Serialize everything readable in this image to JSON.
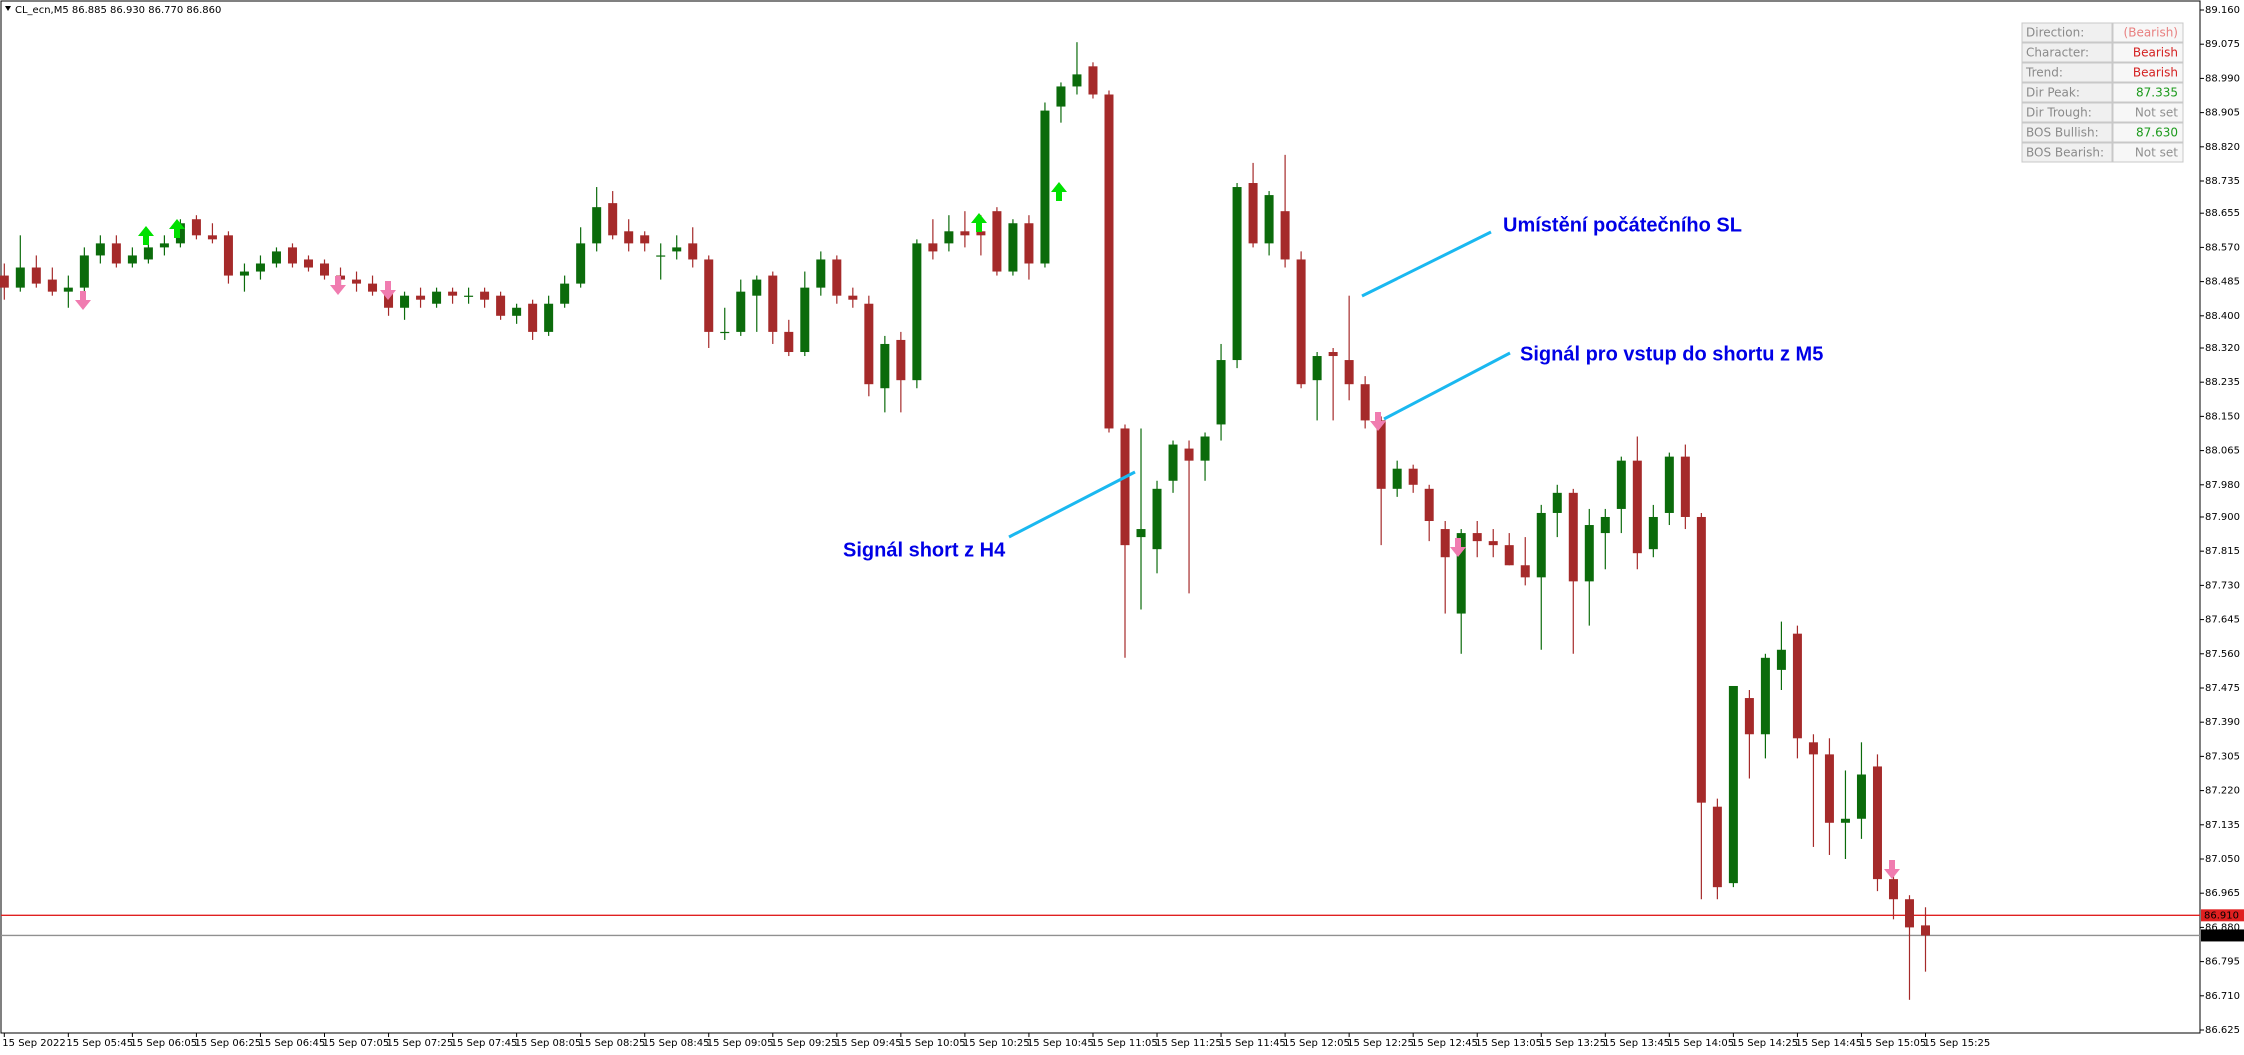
{
  "header": "CL_ecn,M5  86.885 86.930 86.770 86.860",
  "chart_data": {
    "type": "candlestick",
    "annotations": [
      "Umístění počátečního SL",
      "Signál pro vstup do shortu z M5",
      "Signál short z H4"
    ],
    "x": [
      "15 Sep 2022",
      null,
      null,
      null,
      "15 Sep 05:45",
      null,
      null,
      null,
      "15 Sep 06:05",
      null,
      null,
      null,
      "15 Sep 06:25",
      null,
      null,
      null,
      "15 Sep 06:45",
      null,
      null,
      null,
      "15 Sep 07:05",
      null,
      null,
      null,
      "15 Sep 07:25",
      null,
      null,
      null,
      "15 Sep 07:45",
      null,
      null,
      null,
      "15 Sep 08:05",
      null,
      null,
      null,
      "15 Sep 08:25",
      null,
      null,
      null,
      "15 Sep 08:45",
      null,
      null,
      null,
      "15 Sep 09:05",
      null,
      null,
      null,
      "15 Sep 09:25",
      null,
      null,
      null,
      "15 Sep 09:45",
      null,
      null,
      null,
      "15 Sep 10:05",
      null,
      null,
      null,
      "15 Sep 10:25",
      null,
      null,
      null,
      "15 Sep 10:45",
      null,
      null,
      null,
      "15 Sep 11:05",
      null,
      null,
      null,
      "15 Sep 11:25",
      null,
      null,
      null,
      "15 Sep 11:45",
      null,
      null,
      null,
      "15 Sep 12:05",
      null,
      null,
      null,
      "15 Sep 12:25",
      null,
      null,
      null,
      "15 Sep 12:45",
      null,
      null,
      null,
      "15 Sep 13:05",
      null,
      null,
      null,
      "15 Sep 13:25",
      null,
      null,
      null,
      "15 Sep 13:45",
      null,
      null,
      null,
      "15 Sep 14:05",
      null,
      null,
      null,
      "15 Sep 14:25",
      null,
      null,
      null,
      "15 Sep 14:45",
      null,
      null,
      null,
      "15 Sep 15:05",
      null,
      null,
      null,
      "15 Sep 15:25"
    ],
    "up_color": "#0b6b0b",
    "down_color": "#a52a2a",
    "open": [
      88.5,
      88.47,
      88.52,
      88.49,
      88.46,
      88.47,
      88.55,
      88.58,
      88.53,
      88.54,
      88.57,
      88.58,
      88.64,
      88.6,
      88.6,
      88.5,
      88.51,
      88.53,
      88.57,
      88.54,
      88.53,
      88.5,
      88.49,
      88.48,
      88.46,
      88.42,
      88.45,
      88.43,
      88.46,
      88.45,
      88.46,
      88.45,
      88.4,
      88.43,
      88.36,
      88.43,
      88.48,
      88.58,
      88.68,
      88.61,
      88.6,
      88.55,
      88.56,
      88.58,
      88.54,
      88.36,
      88.36,
      88.45,
      88.5,
      88.36,
      88.31,
      88.47,
      88.54,
      88.45,
      88.43,
      88.22,
      88.34,
      88.24,
      88.58,
      88.58,
      88.61,
      88.61,
      88.66,
      88.51,
      88.63,
      88.53,
      88.92,
      88.97,
      89.02,
      88.95,
      88.12,
      87.85,
      87.82,
      87.99,
      88.07,
      88.04,
      88.13,
      88.29,
      88.73,
      88.58,
      88.66,
      88.54,
      88.24,
      88.31,
      88.29,
      88.23,
      88.14,
      87.97,
      88.02,
      87.97,
      87.87,
      87.66,
      87.86,
      87.84,
      87.83,
      87.78,
      87.75,
      87.91,
      87.96,
      87.74,
      87.86,
      87.92,
      88.04,
      87.82,
      87.91,
      88.05,
      87.9,
      87.18,
      86.99,
      87.45,
      87.36,
      87.52,
      87.61,
      87.34,
      87.31,
      87.14,
      87.15,
      87.28,
      87.0,
      86.95,
      86.885
    ],
    "high": [
      88.53,
      88.6,
      88.55,
      88.52,
      88.5,
      88.57,
      88.6,
      88.6,
      88.57,
      88.6,
      88.6,
      88.64,
      88.65,
      88.63,
      88.61,
      88.53,
      88.55,
      88.57,
      88.58,
      88.55,
      88.54,
      88.52,
      88.51,
      88.5,
      88.47,
      88.46,
      88.47,
      88.47,
      88.47,
      88.47,
      88.47,
      88.46,
      88.43,
      88.44,
      88.45,
      88.5,
      88.62,
      88.72,
      88.71,
      88.64,
      88.61,
      88.58,
      88.6,
      88.62,
      88.55,
      88.42,
      88.49,
      88.5,
      88.51,
      88.39,
      88.51,
      88.56,
      88.55,
      88.47,
      88.45,
      88.35,
      88.36,
      88.59,
      88.64,
      88.65,
      88.66,
      88.65,
      88.67,
      88.64,
      88.65,
      88.93,
      88.98,
      89.08,
      89.03,
      88.96,
      88.13,
      88.12,
      87.99,
      88.09,
      88.09,
      88.11,
      88.33,
      88.73,
      88.78,
      88.71,
      88.8,
      88.56,
      88.31,
      88.32,
      88.45,
      88.25,
      88.15,
      88.04,
      88.03,
      87.98,
      87.89,
      87.87,
      87.89,
      87.87,
      87.86,
      87.85,
      87.93,
      87.98,
      87.97,
      87.92,
      87.92,
      88.05,
      88.1,
      87.93,
      88.06,
      88.08,
      87.91,
      87.2,
      87.48,
      87.47,
      87.56,
      87.64,
      87.63,
      87.36,
      87.35,
      87.27,
      87.34,
      87.31,
      87.01,
      86.96,
      86.93
    ],
    "low": [
      88.44,
      88.46,
      88.47,
      88.45,
      88.42,
      88.44,
      88.53,
      88.52,
      88.52,
      88.53,
      88.55,
      88.57,
      88.59,
      88.58,
      88.48,
      88.46,
      88.49,
      88.52,
      88.52,
      88.51,
      88.49,
      88.47,
      88.46,
      88.45,
      88.4,
      88.39,
      88.42,
      88.42,
      88.43,
      88.43,
      88.42,
      88.39,
      88.38,
      88.34,
      88.35,
      88.42,
      88.47,
      88.56,
      88.59,
      88.56,
      88.56,
      88.49,
      88.54,
      88.52,
      88.32,
      88.34,
      88.35,
      88.36,
      88.33,
      88.3,
      88.3,
      88.45,
      88.43,
      88.42,
      88.2,
      88.16,
      88.16,
      88.22,
      88.54,
      88.56,
      88.57,
      88.55,
      88.5,
      88.5,
      88.49,
      88.52,
      88.88,
      88.95,
      88.94,
      88.11,
      87.55,
      87.67,
      87.76,
      87.96,
      87.71,
      87.99,
      88.09,
      88.27,
      88.57,
      88.55,
      88.52,
      88.22,
      88.14,
      88.14,
      88.19,
      88.12,
      87.83,
      87.95,
      87.96,
      87.84,
      87.66,
      87.56,
      87.8,
      87.8,
      87.78,
      87.73,
      87.57,
      87.85,
      87.56,
      87.63,
      87.77,
      87.86,
      87.77,
      87.8,
      87.88,
      87.87,
      86.95,
      86.95,
      86.98,
      87.25,
      87.3,
      87.47,
      87.3,
      87.08,
      87.06,
      87.05,
      87.1,
      86.97,
      86.9,
      86.7,
      86.77
    ],
    "close": [
      88.47,
      88.52,
      88.48,
      88.46,
      88.47,
      88.55,
      88.58,
      88.53,
      88.55,
      88.57,
      88.58,
      88.63,
      88.6,
      88.59,
      88.5,
      88.51,
      88.53,
      88.56,
      88.53,
      88.52,
      88.5,
      88.49,
      88.48,
      88.46,
      88.42,
      88.45,
      88.44,
      88.46,
      88.45,
      88.45,
      88.44,
      88.4,
      88.42,
      88.36,
      88.43,
      88.48,
      88.58,
      88.67,
      88.6,
      88.58,
      88.58,
      88.55,
      88.57,
      88.54,
      88.36,
      88.36,
      88.46,
      88.49,
      88.36,
      88.31,
      88.47,
      88.54,
      88.45,
      88.44,
      88.23,
      88.33,
      88.24,
      88.58,
      88.56,
      88.61,
      88.6,
      88.6,
      88.51,
      88.63,
      88.53,
      88.91,
      88.97,
      89.0,
      88.95,
      88.12,
      87.83,
      87.87,
      87.97,
      88.08,
      88.04,
      88.1,
      88.29,
      88.72,
      88.58,
      88.7,
      88.54,
      88.23,
      88.3,
      88.3,
      88.23,
      88.14,
      87.97,
      88.02,
      87.98,
      87.89,
      87.8,
      87.86,
      87.84,
      87.83,
      87.78,
      87.75,
      87.91,
      87.96,
      87.74,
      87.88,
      87.9,
      88.04,
      87.81,
      87.9,
      88.05,
      87.9,
      87.19,
      86.98,
      87.48,
      87.36,
      87.55,
      87.57,
      87.35,
      87.31,
      87.14,
      87.15,
      87.26,
      87.0,
      86.95,
      86.88,
      86.86
    ],
    "ylim": [
      86.625,
      89.16
    ],
    "yticks": [
      {
        "value": 89.16,
        "label": "89.160"
      },
      {
        "value": 89.075,
        "label": "89.075"
      },
      {
        "value": 88.99,
        "label": "88.990"
      },
      {
        "value": 88.905,
        "label": "88.905"
      },
      {
        "value": 88.82,
        "label": "88.820"
      },
      {
        "value": 88.735,
        "label": "88.735"
      },
      {
        "value": 88.655,
        "label": "88.655"
      },
      {
        "value": 88.57,
        "label": "88.570"
      },
      {
        "value": 88.485,
        "label": "88.485"
      },
      {
        "value": 88.4,
        "label": "88.400"
      },
      {
        "value": 88.32,
        "label": "88.320"
      },
      {
        "value": 88.235,
        "label": "88.235"
      },
      {
        "value": 88.15,
        "label": "88.150"
      },
      {
        "value": 88.065,
        "label": "88.065"
      },
      {
        "value": 87.98,
        "label": "87.980"
      },
      {
        "value": 87.9,
        "label": "87.900"
      },
      {
        "value": 87.815,
        "label": "87.815"
      },
      {
        "value": 87.73,
        "label": "87.730"
      },
      {
        "value": 87.645,
        "label": "87.645"
      },
      {
        "value": 87.56,
        "label": "87.560"
      },
      {
        "value": 87.475,
        "label": "87.475"
      },
      {
        "value": 87.39,
        "label": "87.390"
      },
      {
        "value": 87.305,
        "label": "87.305"
      },
      {
        "value": 87.22,
        "label": "87.220"
      },
      {
        "value": 87.135,
        "label": "87.135"
      },
      {
        "value": 87.05,
        "label": "87.050"
      },
      {
        "value": 86.965,
        "label": "86.965"
      },
      {
        "value": 86.88,
        "label": "86.880"
      },
      {
        "value": 86.795,
        "label": "86.795"
      },
      {
        "value": 86.71,
        "label": "86.710"
      },
      {
        "value": 86.625,
        "label": "86.625"
      }
    ],
    "hlines": [
      {
        "value": 86.91,
        "label": "86.910",
        "color": "#e02020"
      },
      {
        "value": 86.86,
        "label": "86.860",
        "color": "#909090"
      }
    ]
  },
  "panel": {
    "rows": [
      {
        "label": "Direction:",
        "value": "(Bearish)",
        "color": "#e88080"
      },
      {
        "label": "Character:",
        "value": "Bearish",
        "color": "#d42020"
      },
      {
        "label": "Trend:",
        "value": "Bearish",
        "color": "#d42020"
      },
      {
        "label": "Dir Peak:",
        "value": "87.335",
        "color": "#1c9a1c"
      },
      {
        "label": "Dir Trough:",
        "value": "Not set",
        "color": "#909090"
      },
      {
        "label": "BOS Bullish:",
        "value": "87.630",
        "color": "#1c9a1c"
      },
      {
        "label": "BOS Bearish:",
        "value": "Not set",
        "color": "#909090"
      }
    ]
  }
}
